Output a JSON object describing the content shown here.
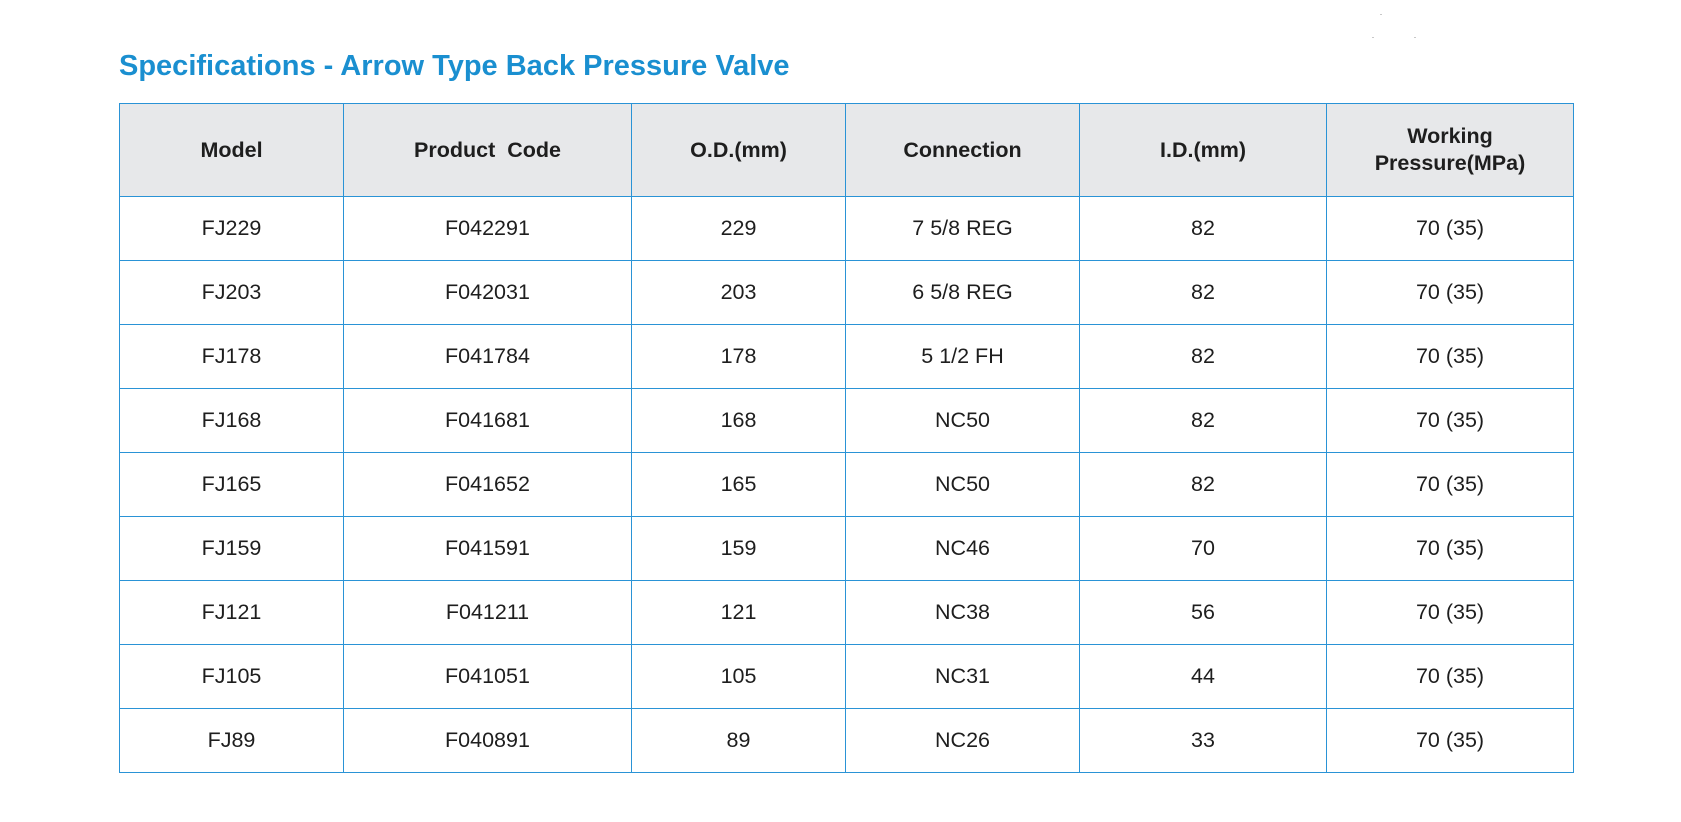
{
  "title": "Specifications - Arrow Type Back Pressure Valve",
  "table": {
    "headers": [
      "Model",
      "Product  Code",
      "O.D.(mm)",
      "Connection",
      "I.D.(mm)"
    ],
    "pressure_header": {
      "line1": "Working",
      "line2": "Pressure(MPa)"
    },
    "rows": [
      {
        "model": "FJ229",
        "code": "F042291",
        "od": "229",
        "connection": "7 5/8 REG",
        "id": "82",
        "pressure": "70 (35)"
      },
      {
        "model": "FJ203",
        "code": "F042031",
        "od": "203",
        "connection": "6 5/8 REG",
        "id": "82",
        "pressure": "70 (35)"
      },
      {
        "model": "FJ178",
        "code": "F041784",
        "od": "178",
        "connection": "5 1/2 FH",
        "id": "82",
        "pressure": "70 (35)"
      },
      {
        "model": "FJ168",
        "code": "F041681",
        "od": "168",
        "connection": "NC50",
        "id": "82",
        "pressure": "70 (35)"
      },
      {
        "model": "FJ165",
        "code": "F041652",
        "od": "165",
        "connection": "NC50",
        "id": "82",
        "pressure": "70 (35)"
      },
      {
        "model": "FJ159",
        "code": "F041591",
        "od": "159",
        "connection": "NC46",
        "id": "70",
        "pressure": "70 (35)"
      },
      {
        "model": "FJ121",
        "code": "F041211",
        "od": "121",
        "connection": "NC38",
        "id": "56",
        "pressure": "70 (35)"
      },
      {
        "model": "FJ105",
        "code": "F041051",
        "od": "105",
        "connection": "NC31",
        "id": "44",
        "pressure": "70 (35)"
      },
      {
        "model": "FJ89",
        "code": "F040891",
        "od": "89",
        "connection": "NC26",
        "id": "33",
        "pressure": "70 (35)"
      }
    ]
  },
  "colors": {
    "title": "#1a8fd0",
    "border": "#2a93d6",
    "header_bg": "#e7e8ea",
    "text": "#1e1e1e"
  }
}
